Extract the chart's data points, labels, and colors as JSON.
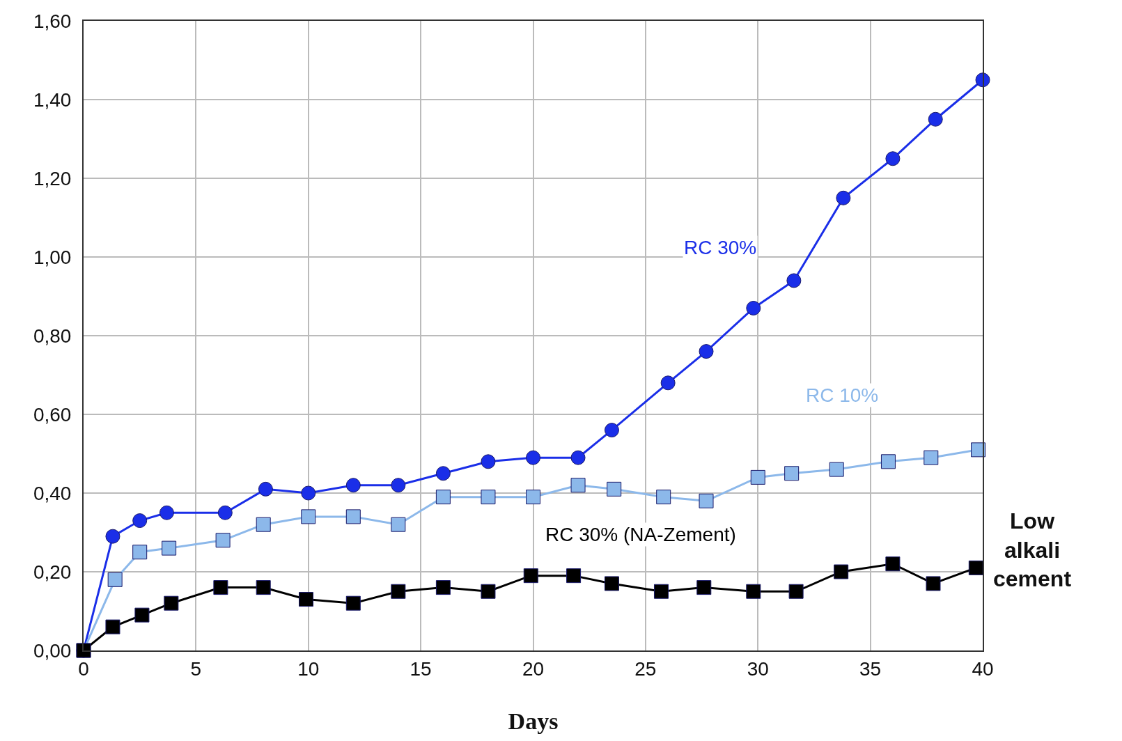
{
  "chart_data": {
    "type": "line",
    "xlabel": "Days",
    "xlim": [
      0,
      40
    ],
    "xticks": [
      0,
      5,
      10,
      15,
      20,
      25,
      30,
      35,
      40
    ],
    "ylim": [
      0,
      1.6
    ],
    "yticks": [
      {
        "value": 0,
        "label": "0,00"
      },
      {
        "value": 0.2,
        "label": "0,20"
      },
      {
        "value": 0.4,
        "label": "0,40"
      },
      {
        "value": 0.6,
        "label": "0,60"
      },
      {
        "value": 0.8,
        "label": "0,80"
      },
      {
        "value": 1.0,
        "label": "1,00"
      },
      {
        "value": 1.2,
        "label": "1,20"
      },
      {
        "value": 1.4,
        "label": "1,40"
      },
      {
        "value": 1.6,
        "label": "1,60"
      }
    ],
    "grid": true,
    "legend": false,
    "series": [
      {
        "name": "RC 30%",
        "color": "#1a2ee8",
        "marker": "circle",
        "x": [
          0,
          1.3,
          2.5,
          3.7,
          6.3,
          8.1,
          10,
          12,
          14,
          16,
          18,
          20,
          22,
          23.5,
          26,
          27.7,
          29.8,
          31.6,
          33.8,
          36,
          37.9,
          40
        ],
        "values": [
          0,
          0.29,
          0.33,
          0.35,
          0.35,
          0.41,
          0.4,
          0.42,
          0.42,
          0.45,
          0.48,
          0.49,
          0.49,
          0.56,
          0.68,
          0.76,
          0.87,
          0.94,
          1.15,
          1.25,
          1.35,
          1.45
        ]
      },
      {
        "name": "RC 10%",
        "color": "#8cb8ea",
        "marker": "square",
        "x": [
          0,
          1.4,
          2.5,
          3.8,
          6.2,
          8,
          10,
          12,
          14,
          16,
          18,
          20,
          22,
          23.6,
          25.8,
          27.7,
          30,
          31.5,
          33.5,
          35.8,
          37.7,
          39.8
        ],
        "values": [
          0,
          0.18,
          0.25,
          0.26,
          0.28,
          0.32,
          0.34,
          0.34,
          0.32,
          0.39,
          0.39,
          0.39,
          0.42,
          0.41,
          0.39,
          0.38,
          0.44,
          0.45,
          0.46,
          0.48,
          0.49,
          0.51
        ]
      },
      {
        "name": "RC 30% (NA-Zement)",
        "color": "#000000",
        "marker": "square",
        "x": [
          0,
          1.3,
          2.6,
          3.9,
          6.1,
          8,
          9.9,
          12,
          14,
          16,
          18,
          19.9,
          21.8,
          23.5,
          25.7,
          27.6,
          29.8,
          31.7,
          33.7,
          36,
          37.8,
          39.7
        ],
        "values": [
          0,
          0.06,
          0.09,
          0.12,
          0.16,
          0.16,
          0.13,
          0.12,
          0.15,
          0.16,
          0.15,
          0.19,
          0.19,
          0.17,
          0.15,
          0.16,
          0.15,
          0.15,
          0.2,
          0.22,
          0.17,
          0.21
        ]
      }
    ],
    "annotations": [
      "Low alkali cement"
    ]
  }
}
